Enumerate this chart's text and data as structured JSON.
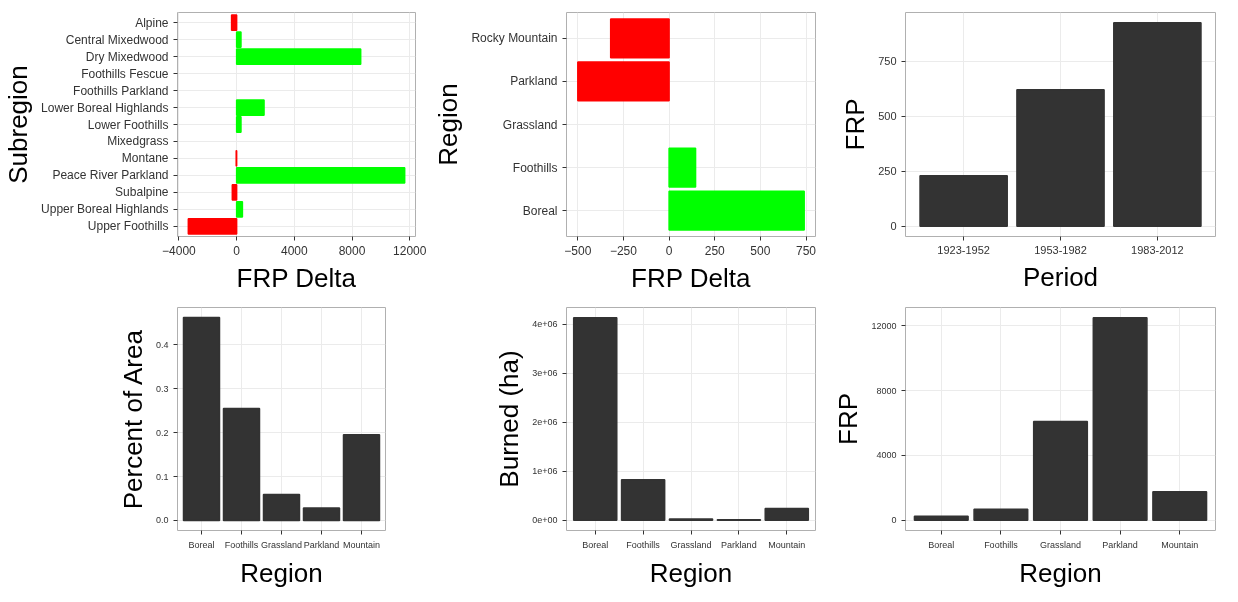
{
  "chart_data": [
    {
      "type": "bar",
      "orientation": "horizontal",
      "xlabel": "FRP Delta",
      "ylabel": "Subregion",
      "categories": [
        "Alpine",
        "Central Mixedwood",
        "Dry Mixedwood",
        "Foothills Fescue",
        "Foothills Parkland",
        "Lower Boreal Highlands",
        "Lower Foothills",
        "Mixedgrass",
        "Montane",
        "Peace River Parkland",
        "Subalpine",
        "Upper Boreal Highlands",
        "Upper Foothills"
      ],
      "values": [
        -350,
        300,
        8600,
        null,
        null,
        1900,
        300,
        null,
        -30,
        11650,
        -300,
        400,
        -3350
      ],
      "colors": [
        "#ff0000",
        "#00ff00",
        "#00ff00",
        null,
        null,
        "#00ff00",
        "#00ff00",
        null,
        "#ff0000",
        "#00ff00",
        "#ff0000",
        "#00ff00",
        "#ff0000"
      ],
      "xlim": [
        -4100,
        12400
      ],
      "xticks": [
        -4000,
        0,
        4000,
        8000,
        12000
      ],
      "grid": true
    },
    {
      "type": "bar",
      "orientation": "horizontal",
      "xlabel": "FRP Delta",
      "ylabel": "Region",
      "categories": [
        "Rocky Mountain",
        "Parkland",
        "Grassland",
        "Foothills",
        "Boreal"
      ],
      "values": [
        -320,
        -500,
        null,
        145,
        740
      ],
      "colors": [
        "#ff0000",
        "#ff0000",
        null,
        "#00ff00",
        "#00ff00"
      ],
      "xlim": [
        -562,
        802
      ],
      "xticks": [
        -500,
        -250,
        0,
        250,
        500,
        750
      ],
      "grid": true
    },
    {
      "type": "bar",
      "xlabel": "Period",
      "ylabel": "FRP",
      "categories": [
        "1923-1952",
        "1953-1982",
        "1983-2012"
      ],
      "values": [
        230,
        620,
        925
      ],
      "color": "#333333",
      "ylim": [
        -46,
        971
      ],
      "yticks": [
        0,
        250,
        500,
        750
      ],
      "grid": true
    },
    {
      "type": "bar",
      "xlabel": "Region",
      "ylabel": "Percent of Area",
      "categories": [
        "Boreal",
        "Foothills",
        "Grassland",
        "Parkland",
        "Mountain"
      ],
      "values": [
        0.462,
        0.255,
        0.059,
        0.028,
        0.195
      ],
      "color": "#333333",
      "ylim": [
        -0.023,
        0.485
      ],
      "yticks": [
        {
          "value": 0,
          "label": "0.0"
        },
        0.1,
        0.2,
        0.3,
        0.4
      ],
      "grid": true
    },
    {
      "type": "bar",
      "xlabel": "Region",
      "ylabel": "Burned (ha)",
      "categories": [
        "Boreal",
        "Foothills",
        "Grassland",
        "Parkland",
        "Mountain"
      ],
      "values": [
        4140000,
        830000,
        30000,
        10000,
        240000
      ],
      "color": "#333333",
      "ylim": [
        -207000,
        4347000
      ],
      "yticks": [
        {
          "value": 0,
          "label": "0e+00"
        },
        {
          "value": 1000000,
          "label": "1e+06"
        },
        {
          "value": 2000000,
          "label": "2e+06"
        },
        {
          "value": 3000000,
          "label": "3e+06"
        },
        {
          "value": 4000000,
          "label": "4e+06"
        }
      ],
      "grid": true
    },
    {
      "type": "bar",
      "xlabel": "Region",
      "ylabel": "FRP",
      "categories": [
        "Boreal",
        "Foothills",
        "Grassland",
        "Parkland",
        "Mountain"
      ],
      "values": [
        250,
        680,
        6100,
        12500,
        1770
      ],
      "color": "#333333",
      "ylim": [
        -625,
        13125
      ],
      "yticks": [
        0,
        4000,
        8000,
        12000
      ],
      "grid": true
    }
  ]
}
